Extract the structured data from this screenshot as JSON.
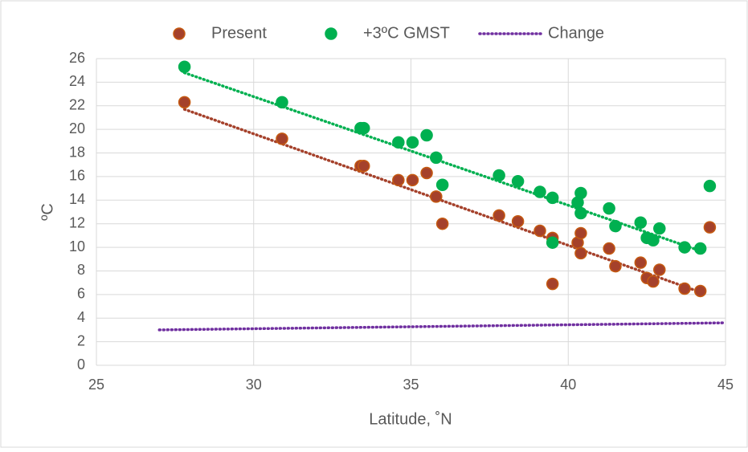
{
  "chart_data": {
    "type": "scatter",
    "x_label": "Latitude, ˚N",
    "y_label": "ºC",
    "xlim": [
      25,
      45
    ],
    "xticks": [
      25,
      30,
      35,
      40,
      45
    ],
    "ylim": [
      0,
      26
    ],
    "yticks": [
      0,
      2,
      4,
      6,
      8,
      10,
      12,
      14,
      16,
      18,
      20,
      22,
      24,
      26
    ],
    "grid": true,
    "legend": "top",
    "series": [
      {
        "name": "Present",
        "color": "#a5412b",
        "stroke": "#c55a11",
        "style": "markers",
        "x": [
          27.8,
          30.9,
          33.4,
          33.5,
          34.6,
          35.05,
          35.5,
          35.8,
          36.0,
          37.8,
          38.4,
          39.1,
          39.5,
          39.5,
          40.3,
          40.4,
          40.4,
          41.3,
          41.5,
          42.3,
          42.5,
          42.7,
          42.9,
          43.7,
          44.2,
          44.5
        ],
        "values": [
          22.3,
          19.2,
          16.9,
          16.9,
          15.7,
          15.7,
          16.3,
          14.3,
          12.0,
          12.7,
          12.2,
          11.4,
          10.8,
          6.9,
          10.4,
          11.2,
          9.5,
          9.9,
          8.4,
          8.7,
          7.4,
          7.1,
          8.1,
          6.5,
          6.3,
          11.7
        ],
        "trend": {
          "x": [
            27.8,
            44.2
          ],
          "values": [
            21.7,
            6.2
          ]
        }
      },
      {
        "name": "+3ºC GMST",
        "color": "#00b050",
        "stroke": "#00b050",
        "style": "markers",
        "x": [
          27.8,
          30.9,
          33.4,
          33.5,
          34.6,
          35.05,
          35.5,
          35.8,
          36.0,
          37.8,
          38.4,
          39.1,
          39.5,
          39.5,
          40.3,
          40.4,
          40.4,
          41.3,
          41.5,
          42.3,
          42.5,
          42.7,
          42.9,
          43.7,
          44.2,
          44.5
        ],
        "values": [
          25.3,
          22.3,
          20.1,
          20.1,
          18.9,
          18.9,
          19.5,
          17.6,
          15.3,
          16.1,
          15.6,
          14.7,
          14.2,
          10.4,
          13.8,
          14.6,
          12.9,
          13.3,
          11.8,
          12.1,
          10.8,
          10.6,
          11.6,
          10.0,
          9.9,
          15.2
        ],
        "trend": {
          "x": [
            27.8,
            44.2
          ],
          "values": [
            24.8,
            9.7
          ]
        }
      },
      {
        "name": "Change",
        "color": "#7030a0",
        "style": "dotted-line",
        "x": [
          27,
          45
        ],
        "values": [
          3.0,
          3.6
        ]
      }
    ]
  }
}
